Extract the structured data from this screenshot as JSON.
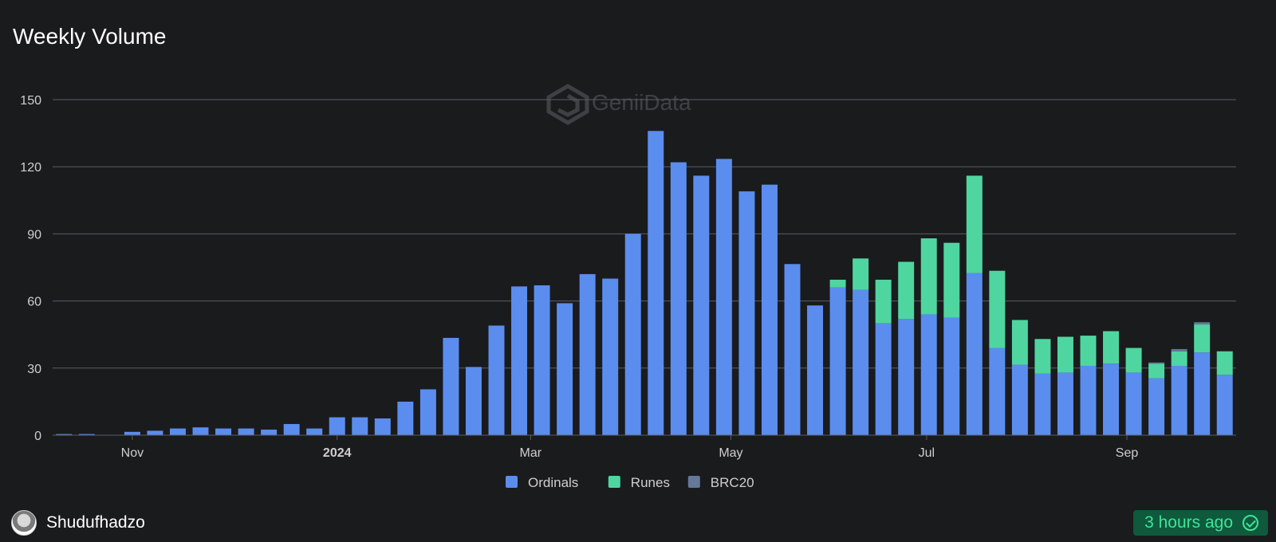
{
  "header": {
    "title": "Weekly Volume"
  },
  "watermark": {
    "text": "GeniiData"
  },
  "colors": {
    "ordinals": "#5b8def",
    "runes": "#4fd6a0",
    "brc20": "#64789a",
    "grid": "#5a5d63",
    "axis_text": "#cfcfcf"
  },
  "chart_data": {
    "type": "bar",
    "stacked": true,
    "ylim": [
      0,
      150
    ],
    "yticks": [
      0,
      30,
      60,
      90,
      120,
      150
    ],
    "xticks": [
      {
        "label": "Nov",
        "bold": false,
        "at_index": 3
      },
      {
        "label": "2024",
        "bold": true,
        "at_index": 12
      },
      {
        "label": "Mar",
        "bold": false,
        "at_index": 20.5
      },
      {
        "label": "May",
        "bold": false,
        "at_index": 29.3
      },
      {
        "label": "Jul",
        "bold": false,
        "at_index": 37.9
      },
      {
        "label": "Sep",
        "bold": false,
        "at_index": 46.7
      }
    ],
    "series": [
      {
        "name": "Ordinals",
        "color": "#5b8def",
        "values": [
          0.5,
          0.5,
          0,
          1.5,
          2,
          3,
          3.5,
          3,
          3,
          2.5,
          5,
          3,
          8,
          8,
          7.5,
          15,
          20.5,
          43.5,
          30.5,
          49,
          66.5,
          67,
          59,
          72,
          70,
          90,
          136,
          122,
          116,
          123.5,
          109,
          112,
          76.5,
          58,
          66,
          65,
          50,
          52,
          54,
          52.5,
          72.5,
          39,
          31.5,
          27.5,
          28,
          31,
          32,
          28,
          25.5,
          31,
          37,
          27
        ]
      },
      {
        "name": "Runes",
        "color": "#4fd6a0",
        "values": [
          0,
          0,
          0,
          0,
          0,
          0,
          0,
          0,
          0,
          0,
          0,
          0,
          0,
          0,
          0,
          0,
          0,
          0,
          0,
          0,
          0,
          0,
          0,
          0,
          0,
          0,
          0,
          0,
          0,
          0,
          0,
          0,
          0,
          0,
          3.5,
          14,
          19.5,
          25.5,
          34,
          33.5,
          43.5,
          34.5,
          20,
          15.5,
          16,
          13.5,
          14.5,
          11,
          6.5,
          6.5,
          12.5,
          10.5
        ]
      },
      {
        "name": "BRC20",
        "color": "#64789a",
        "values": [
          0,
          0,
          0,
          0,
          0,
          0,
          0,
          0,
          0,
          0,
          0,
          0,
          0,
          0,
          0,
          0,
          0,
          0,
          0,
          0,
          0,
          0,
          0,
          0,
          0,
          0,
          0,
          0,
          0,
          0,
          0,
          0,
          0,
          0,
          0,
          0,
          0,
          0,
          0,
          0,
          0,
          0,
          0,
          0,
          0,
          0,
          0,
          0,
          0.5,
          1,
          1,
          0
        ]
      }
    ],
    "legend": {
      "position": "bottom-center"
    }
  },
  "footer": {
    "author": "Shudufhadzo",
    "updated": "3 hours ago"
  }
}
